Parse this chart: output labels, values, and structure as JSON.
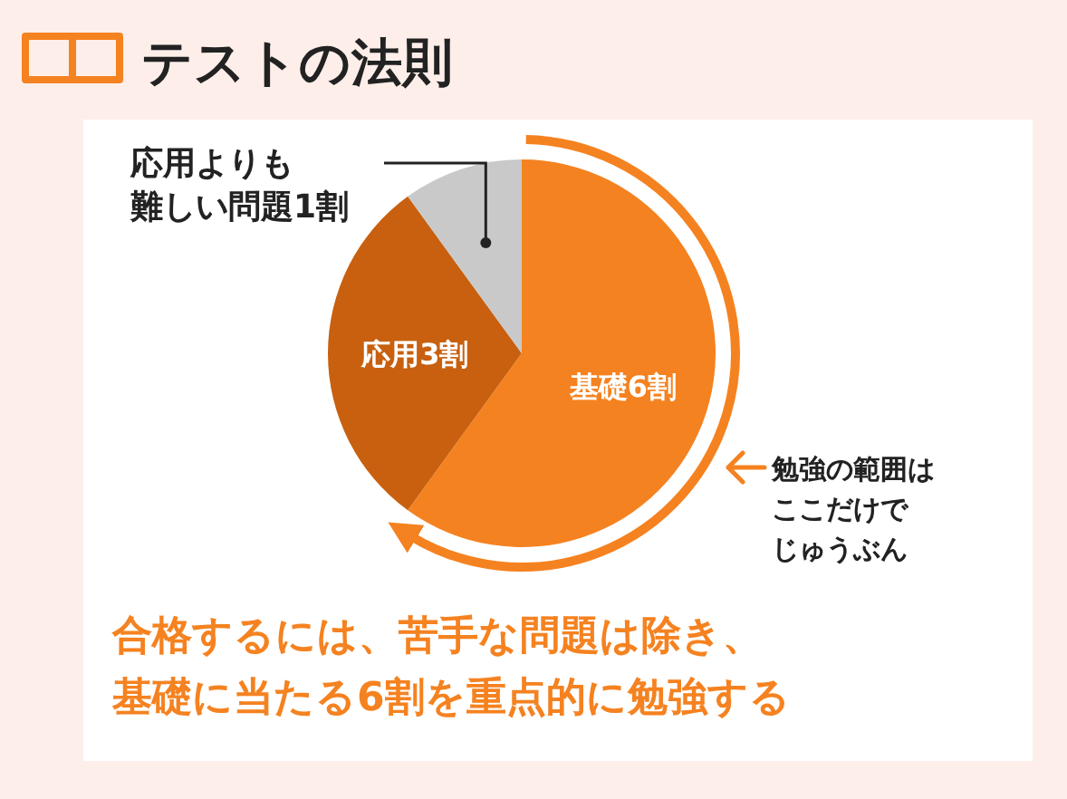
{
  "chart_data": {
    "type": "pie",
    "title": "テストの法則",
    "categories": [
      "基礎6割",
      "応用3割",
      "応用よりも難しい問題1割"
    ],
    "values": [
      60,
      30,
      10
    ],
    "colors": [
      "#f58220",
      "#c8600f",
      "#c9c9c9"
    ],
    "annotations": [
      "勉強の範囲はここだけでじゅうぶん",
      "合格するには、苦手な問題は除き、基礎に当たる6割を重点的に勉強する"
    ]
  }
}
